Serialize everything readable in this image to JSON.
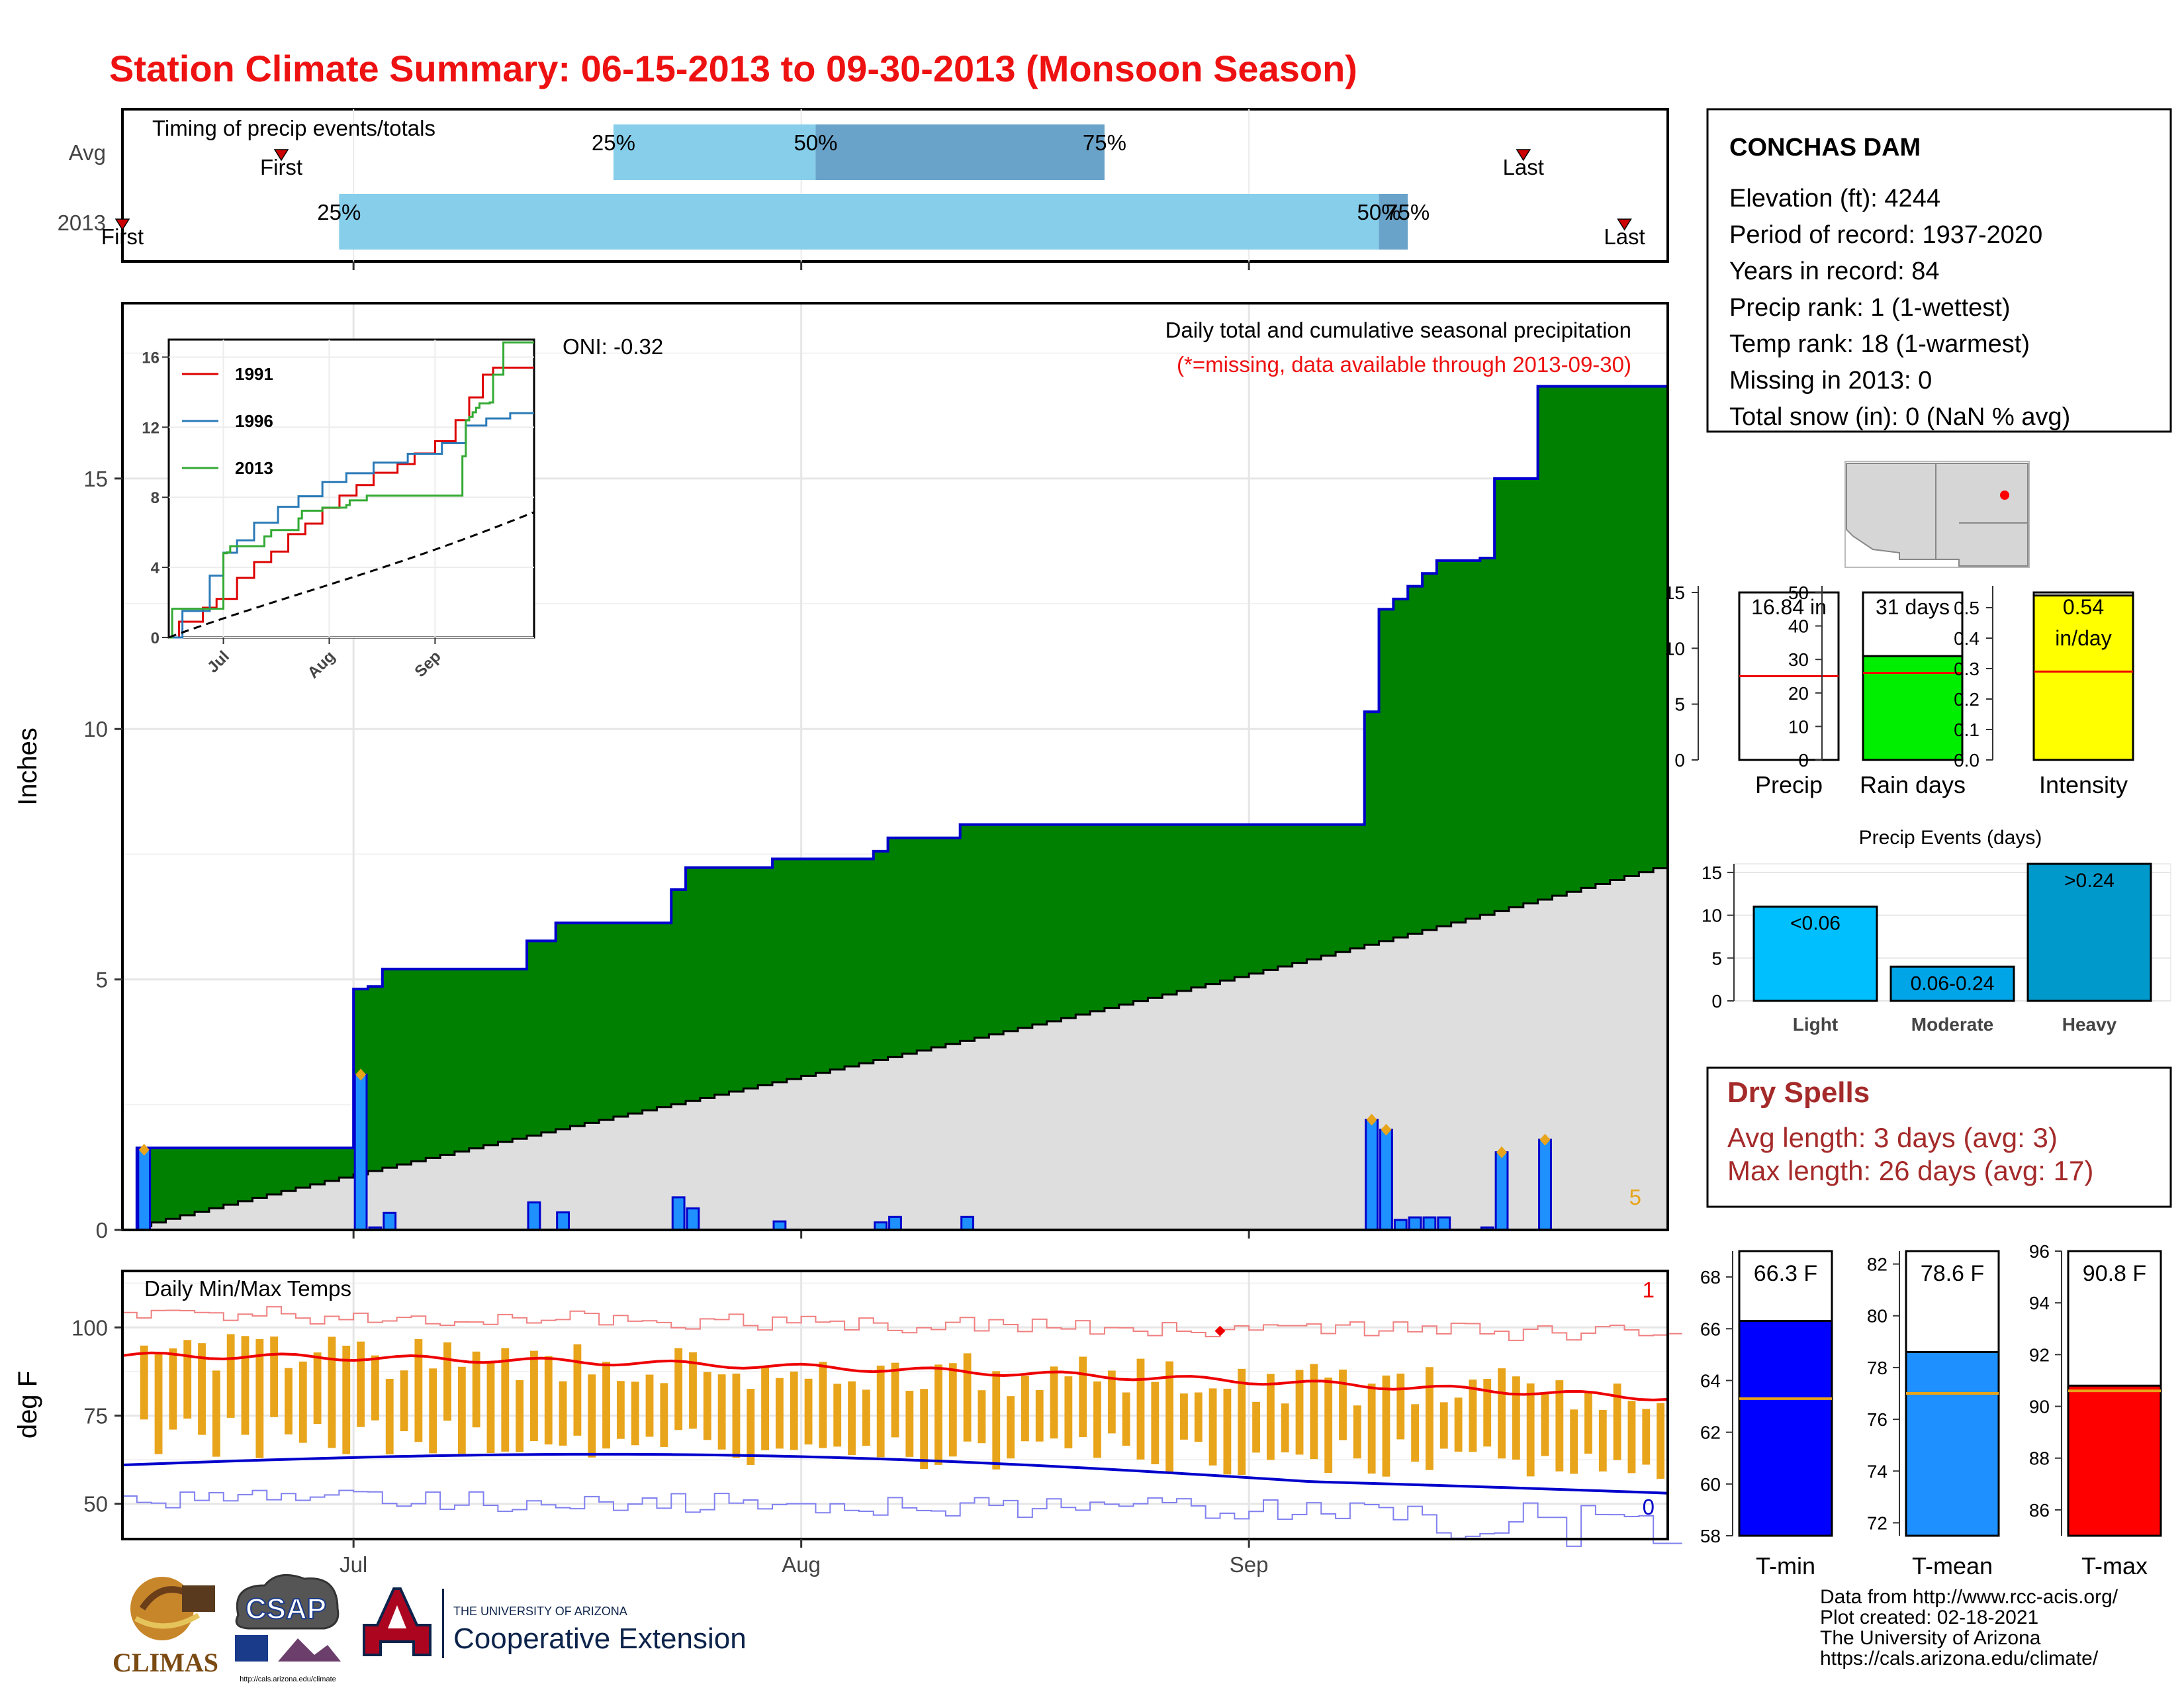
{
  "title": "Station Climate Summary: 06-15-2013 to 09-30-2013 (Monsoon Season)",
  "colors": {
    "title": "#ee1111",
    "precip_cum": "#008000",
    "precip_outline": "#0000cc",
    "normal_fill": "#dedede",
    "daily_bar": "#1e90ff",
    "timing_light": "#87ceeb",
    "timing_dark": "#6aa3c9",
    "tmax": "#ee0000",
    "tmin": "#0000cc",
    "range_bar": "#e8a41a",
    "dry_spell_text": "#a52a2a"
  },
  "timing": {
    "title": "Timing of precip events/totals",
    "rows": [
      {
        "label": "Avg",
        "first_date": "06-26",
        "p25": "07-19",
        "p50": "08-02",
        "p75": "08-22",
        "last_date": "09-20",
        "first_label": "First",
        "last_label": "Last",
        "p25_label": "25%",
        "p50_label": "50%",
        "p75_label": "75%"
      },
      {
        "label": "2013",
        "first_date": "06-15",
        "p25": "06-30",
        "p50": "09-10",
        "p75": "09-12",
        "last_date": "09-27",
        "first_label": "First",
        "last_label": "Last",
        "p25_label": "25%",
        "p50_label": "50%",
        "p75_label": "75%"
      }
    ]
  },
  "main_panel": {
    "title": "Daily total and cumulative seasonal precipitation",
    "subtitle": "(*=missing, data available through 2013-09-30)",
    "oni": "ONI: -0.32",
    "ylabel": "Inches",
    "yticks": [
      "0",
      "5",
      "10",
      "15"
    ],
    "ylim": [
      0,
      18.5
    ],
    "corner_count": "5"
  },
  "inset": {
    "yticks": [
      "0",
      "4",
      "8",
      "12",
      "16"
    ],
    "xticks": [
      "Jul",
      "Aug",
      "Sep"
    ],
    "ylim": [
      0,
      17
    ],
    "legend": [
      {
        "name": "1991",
        "color": "#dd0000"
      },
      {
        "name": "1996",
        "color": "#2a7ab8"
      },
      {
        "name": "2013",
        "color": "#33aa33"
      }
    ]
  },
  "temp_panel": {
    "title": "Daily Min/Max Temps",
    "ylabel": "deg F",
    "yticks": [
      "50",
      "75",
      "100"
    ],
    "ylim": [
      40,
      116
    ],
    "count_high": "1",
    "count_low": "0",
    "xticks": [
      "Jul",
      "Aug",
      "Sep"
    ]
  },
  "station": {
    "name": "CONCHAS DAM",
    "lines": [
      "Elevation (ft): 4244",
      "Period of record: 1937-2020",
      "Years in record: 84",
      "Precip rank: 1 (1-wettest)",
      "Temp rank: 18 (1-warmest)",
      "Missing in 2013: 0",
      "Total snow (in): 0 (NaN % avg)"
    ]
  },
  "mini_bars": [
    {
      "label": "Precip",
      "value_text": "16.84 in",
      "value": 16.84,
      "avg": 7.5,
      "ylim": [
        0,
        15
      ],
      "yticks": [
        "0",
        "5",
        "10",
        "15"
      ],
      "color": "#ffffff"
    },
    {
      "label": "Rain days",
      "value_text": "31 days",
      "value": 31,
      "avg": 26,
      "ylim": [
        0,
        50
      ],
      "yticks": [
        "0",
        "10",
        "20",
        "30",
        "40",
        "50"
      ],
      "color": "#00ee00"
    },
    {
      "label": "Intensity",
      "value_text": "0.54",
      "value_text2": "in/day",
      "value": 0.54,
      "avg": 0.29,
      "ylim": [
        0,
        0.55
      ],
      "yticks": [
        "0.0",
        "0.1",
        "0.2",
        "0.3",
        "0.4",
        "0.5"
      ],
      "color": "#ffff00"
    }
  ],
  "events": {
    "title": "Precip Events (days)",
    "yticks": [
      "0",
      "5",
      "10",
      "15"
    ],
    "ylim": [
      0,
      16
    ],
    "bars": [
      {
        "label": "Light",
        "text": "<0.06",
        "value": 11,
        "color": "#00bfff"
      },
      {
        "label": "Moderate",
        "text": "0.06-0.24",
        "value": 4,
        "color": "#00a5e8"
      },
      {
        "label": "Heavy",
        "text": ">0.24",
        "value": 16,
        "color": "#0099cc"
      }
    ]
  },
  "dry_spells": {
    "title": "Dry Spells",
    "lines": [
      "Avg length: 3 days (avg: 3)",
      "Max length: 26 days (avg: 17)"
    ]
  },
  "temp_bars": [
    {
      "label": "T-min",
      "value_text": "66.3 F",
      "value": 66.3,
      "avg": 63.3,
      "ylim": [
        58,
        69
      ],
      "yticks": [
        "58",
        "60",
        "62",
        "64",
        "66",
        "68"
      ],
      "color": "#0000ff"
    },
    {
      "label": "T-mean",
      "value_text": "78.6 F",
      "value": 78.6,
      "avg": 77.0,
      "ylim": [
        71.5,
        82.5
      ],
      "yticks": [
        "72",
        "74",
        "76",
        "78",
        "80",
        "82"
      ],
      "color": "#1e90ff"
    },
    {
      "label": "T-max",
      "value_text": "90.8 F",
      "value": 90.8,
      "avg": 90.6,
      "ylim": [
        85,
        96
      ],
      "yticks": [
        "86",
        "88",
        "90",
        "92",
        "94",
        "96"
      ],
      "color": "#ff0000"
    }
  ],
  "footer": {
    "lines": [
      "Data from http://www.rcc-acis.org/",
      "Plot created: 02-18-2021",
      "The University of Arizona",
      "https://cals.arizona.edu/climate/"
    ],
    "logo_climas": "CLIMAS",
    "logo_csap": "CSAP",
    "csap_url": "http://cals.arizona.edu/climate",
    "ua_line1": "THE UNIVERSITY OF ARIZONA",
    "ua_line2": "Cooperative Extension"
  },
  "chart_data": {
    "type": "area",
    "x_range": [
      "2013-06-15",
      "2013-09-30"
    ],
    "daily_precip": [
      {
        "date": "06-16",
        "inches": 1.6
      },
      {
        "date": "07-01",
        "inches": 3.1
      },
      {
        "date": "07-02",
        "inches": 0.05
      },
      {
        "date": "07-03",
        "inches": 0.34
      },
      {
        "date": "07-13",
        "inches": 0.55
      },
      {
        "date": "07-15",
        "inches": 0.35
      },
      {
        "date": "07-23",
        "inches": 0.65
      },
      {
        "date": "07-24",
        "inches": 0.43
      },
      {
        "date": "07-30",
        "inches": 0.17
      },
      {
        "date": "08-06",
        "inches": 0.15
      },
      {
        "date": "08-07",
        "inches": 0.26
      },
      {
        "date": "08-12",
        "inches": 0.26
      },
      {
        "date": "09-09",
        "inches": 2.2
      },
      {
        "date": "09-10",
        "inches": 2.0
      },
      {
        "date": "09-11",
        "inches": 0.2
      },
      {
        "date": "09-12",
        "inches": 0.25
      },
      {
        "date": "09-13",
        "inches": 0.25
      },
      {
        "date": "09-14",
        "inches": 0.25
      },
      {
        "date": "09-17",
        "inches": 0.05
      },
      {
        "date": "09-18",
        "inches": 1.55
      },
      {
        "date": "09-21",
        "inches": 1.8
      }
    ],
    "cumulative_2013_total": 16.84,
    "normal_cumulative_end": 7.3,
    "temps": {
      "tmax_normal_start": 92,
      "tmax_normal_end": 80,
      "tmin_normal_start": 61,
      "tmin_normal_end": 53
    },
    "inset_series": [
      "1991",
      "1996",
      "2013"
    ]
  }
}
